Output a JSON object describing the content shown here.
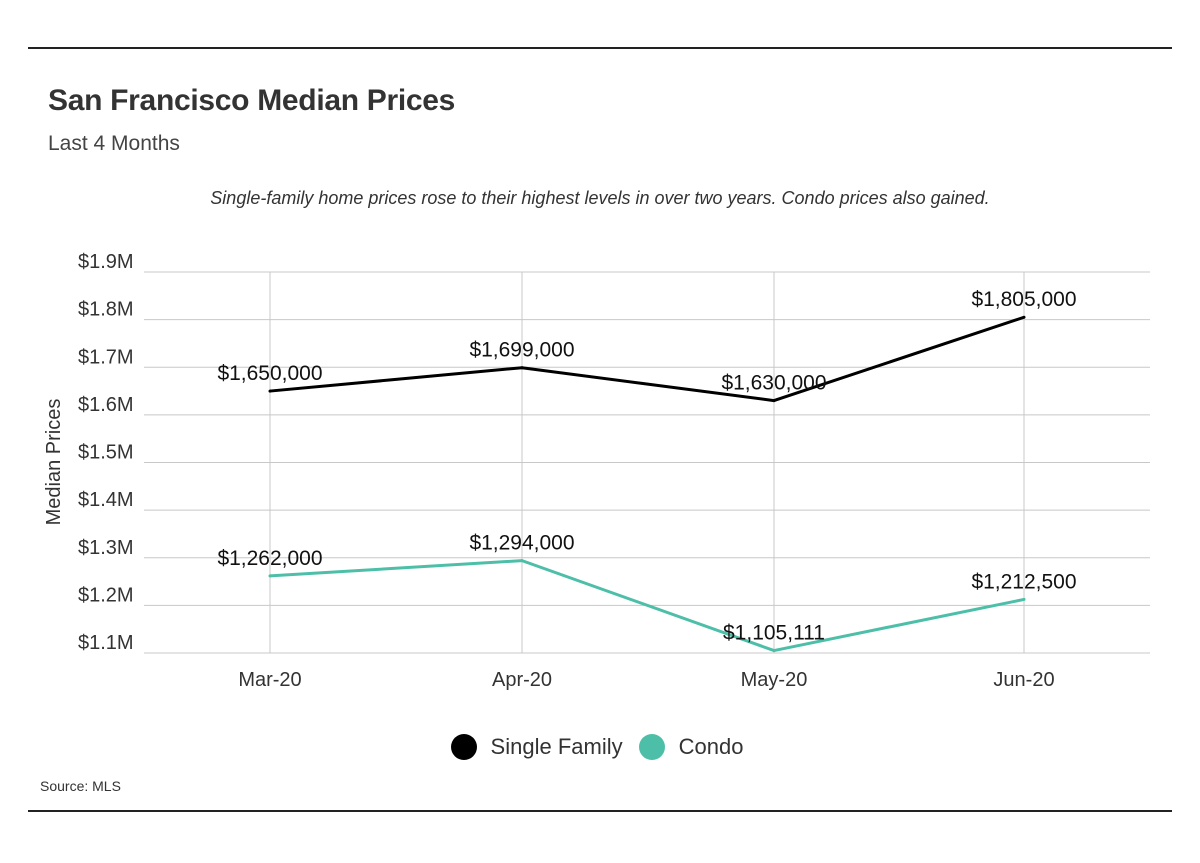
{
  "header": {
    "title": "San Francisco Median Prices",
    "subtitle": "Last 4 Months",
    "caption": "Single-family home prices rose to their highest levels in over two years. Condo prices also gained."
  },
  "footer": {
    "source": "Source: MLS"
  },
  "chart_data": {
    "type": "line",
    "categories": [
      "Mar-20",
      "Apr-20",
      "May-20",
      "Jun-20"
    ],
    "ylabel": "Median Prices",
    "xlabel": "",
    "ylim": [
      1100000,
      1900000
    ],
    "yticks": [
      1100000,
      1200000,
      1300000,
      1400000,
      1500000,
      1600000,
      1700000,
      1800000,
      1900000
    ],
    "ytick_labels": [
      "$1.1M",
      "$1.2M",
      "$1.3M",
      "$1.4M",
      "$1.5M",
      "$1.6M",
      "$1.7M",
      "$1.8M",
      "$1.9M"
    ],
    "grid": true,
    "legend_position": "bottom-center",
    "series": [
      {
        "name": "Single Family",
        "color": "#000000",
        "values": [
          1650000,
          1699000,
          1630000,
          1805000
        ],
        "labels": [
          "$1,650,000",
          "$1,699,000",
          "$1,630,000",
          "$1,805,000"
        ]
      },
      {
        "name": "Condo",
        "color": "#4dbfa8",
        "values": [
          1262000,
          1294000,
          1105111,
          1212500
        ],
        "labels": [
          "$1,262,000",
          "$1,294,000",
          "$1,105,111",
          "$1,212,500"
        ]
      }
    ]
  }
}
